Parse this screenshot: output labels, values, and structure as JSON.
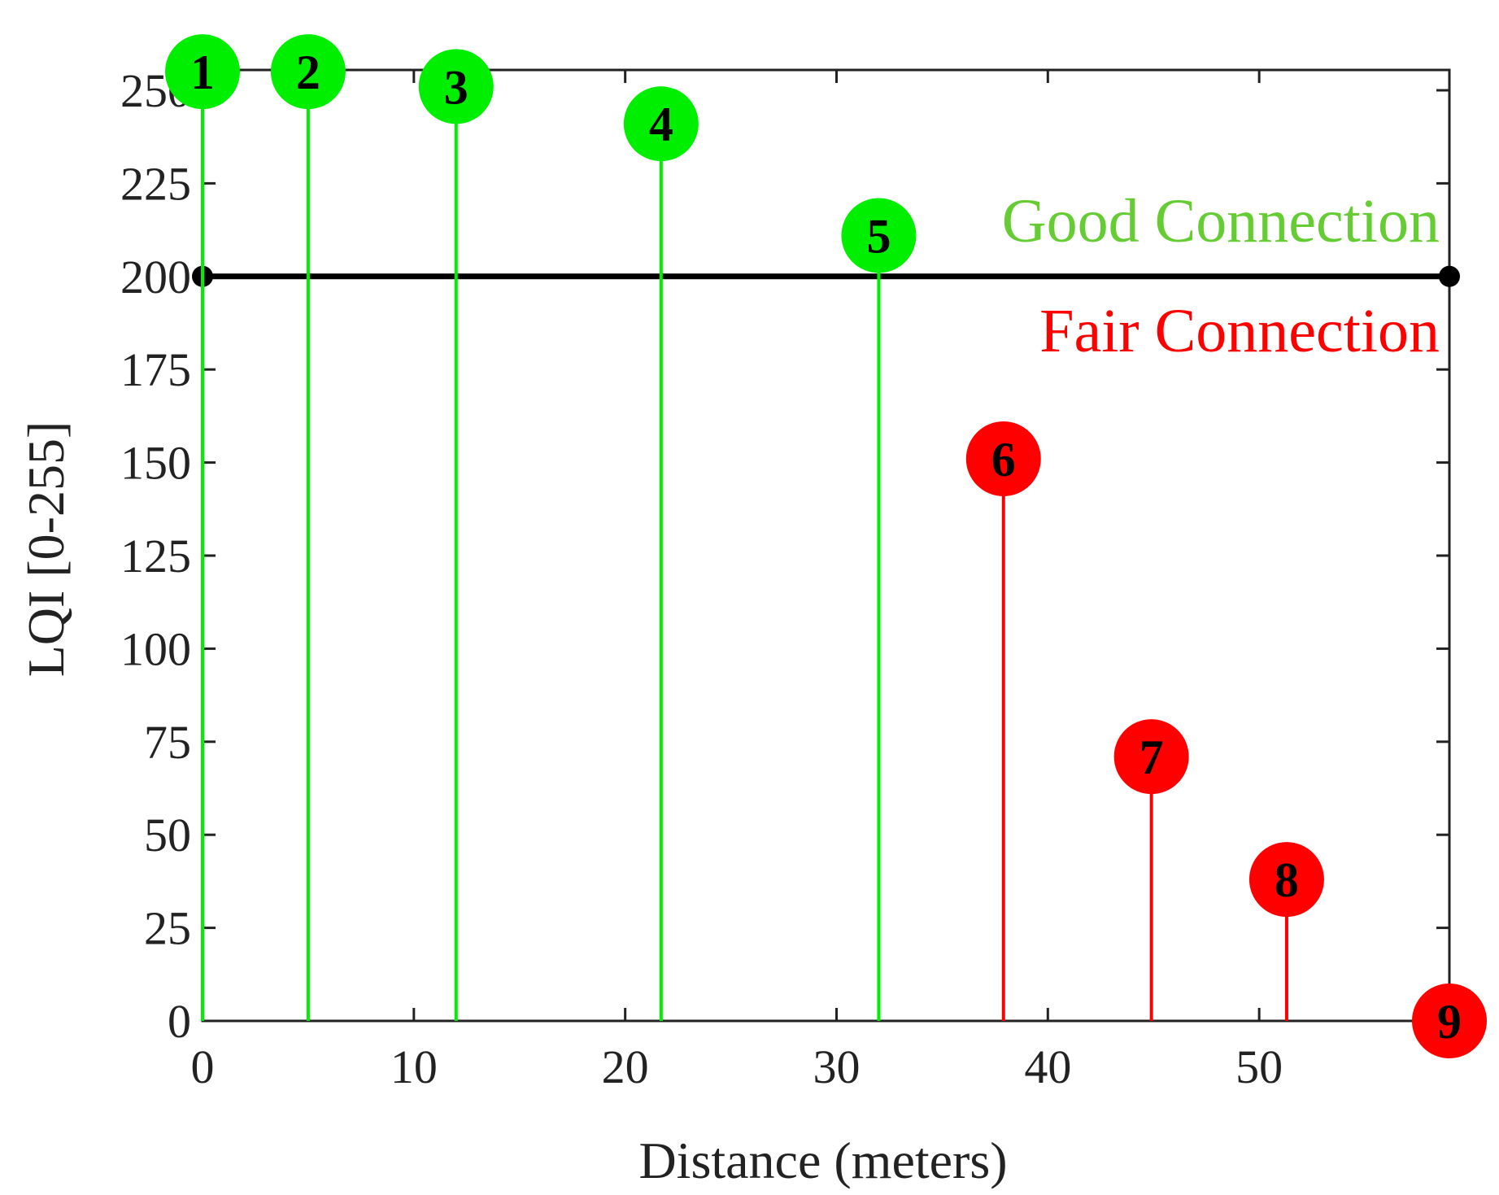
{
  "chart_data": {
    "type": "stem",
    "xlabel": "Distance (meters)",
    "ylabel": "LQI [0-255]",
    "xlim": [
      0,
      59
    ],
    "ylim": [
      0,
      250
    ],
    "xticks": [
      0,
      10,
      20,
      30,
      40,
      50
    ],
    "yticks": [
      0,
      25,
      50,
      75,
      100,
      125,
      150,
      175,
      200,
      225,
      250
    ],
    "grid": false,
    "threshold": {
      "y": 200,
      "x_start": 0,
      "x_end": 59,
      "color": "#000000"
    },
    "region_labels": {
      "above": {
        "text": "Good Connection",
        "color": "#66cc33"
      },
      "below": {
        "text": "Fair Connection",
        "color": "#ff0000"
      }
    },
    "points": [
      {
        "label": "1",
        "x": 0,
        "y": 255,
        "color": "#00ee00"
      },
      {
        "label": "2",
        "x": 5,
        "y": 255,
        "color": "#00ee00"
      },
      {
        "label": "3",
        "x": 12,
        "y": 251,
        "color": "#00ee00"
      },
      {
        "label": "4",
        "x": 21.7,
        "y": 241,
        "color": "#00ee00"
      },
      {
        "label": "5",
        "x": 32,
        "y": 211,
        "color": "#00ee00"
      },
      {
        "label": "6",
        "x": 37.9,
        "y": 151,
        "color": "#ff0000"
      },
      {
        "label": "7",
        "x": 44.9,
        "y": 71,
        "color": "#ff0000"
      },
      {
        "label": "8",
        "x": 51.3,
        "y": 38,
        "color": "#ff0000"
      },
      {
        "label": "9",
        "x": 59,
        "y": 0,
        "color": "#ff0000"
      }
    ]
  }
}
